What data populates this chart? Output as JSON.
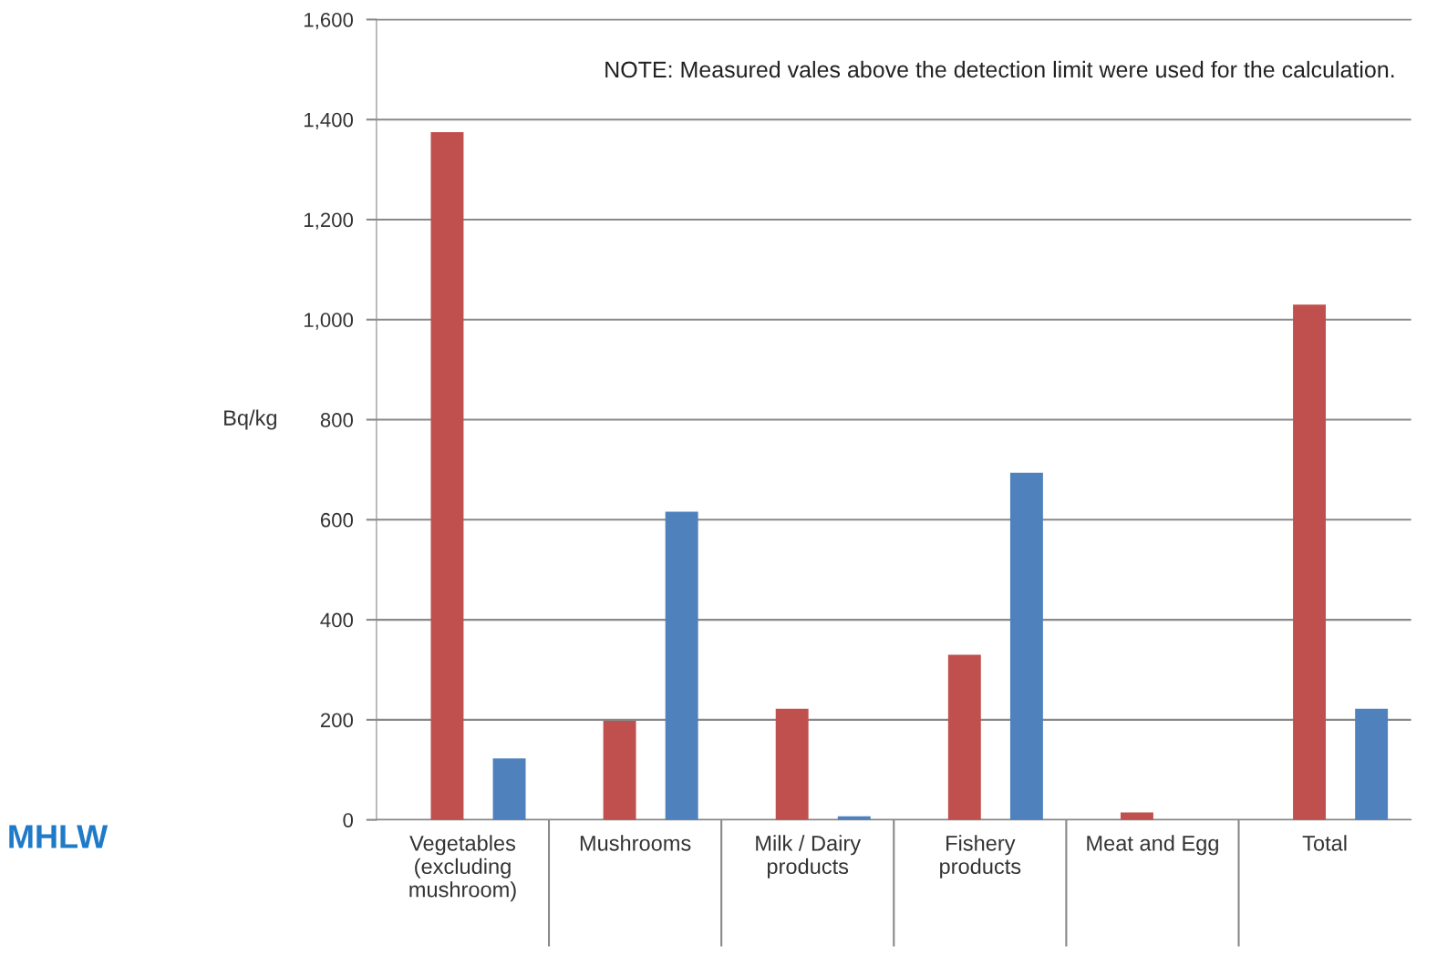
{
  "chart_data": {
    "type": "bar",
    "ylabel": "Bq/kg",
    "categories": [
      "Vegetables\n(excluding\nmushroom)",
      "Mushrooms",
      "Milk / Dairy\nproducts",
      "Fishery\nproducts",
      "Meat and Egg",
      "Total"
    ],
    "series": [
      {
        "color": "#c0504d",
        "values": [
          1375,
          198,
          222,
          330,
          15,
          1030
        ]
      },
      {
        "color": "#4f81bd",
        "values": [
          123,
          616,
          7,
          694,
          0,
          222
        ]
      }
    ],
    "ylim": [
      0,
      1600
    ],
    "yticks": [
      {
        "value": 0,
        "label": "0"
      },
      {
        "value": 200,
        "label": "200"
      },
      {
        "value": 400,
        "label": "400"
      },
      {
        "value": 600,
        "label": "600"
      },
      {
        "value": 800,
        "label": "800"
      },
      {
        "value": 1000,
        "label": "1,000"
      },
      {
        "value": 1200,
        "label": "1,200"
      },
      {
        "value": 1400,
        "label": "1,400"
      },
      {
        "value": 1600,
        "label": "1,600"
      }
    ],
    "grid": "y",
    "legend": false,
    "annotations": [
      "NOTE: Measured vales above the detection limit were used for the calculation.",
      "MHLW"
    ]
  }
}
